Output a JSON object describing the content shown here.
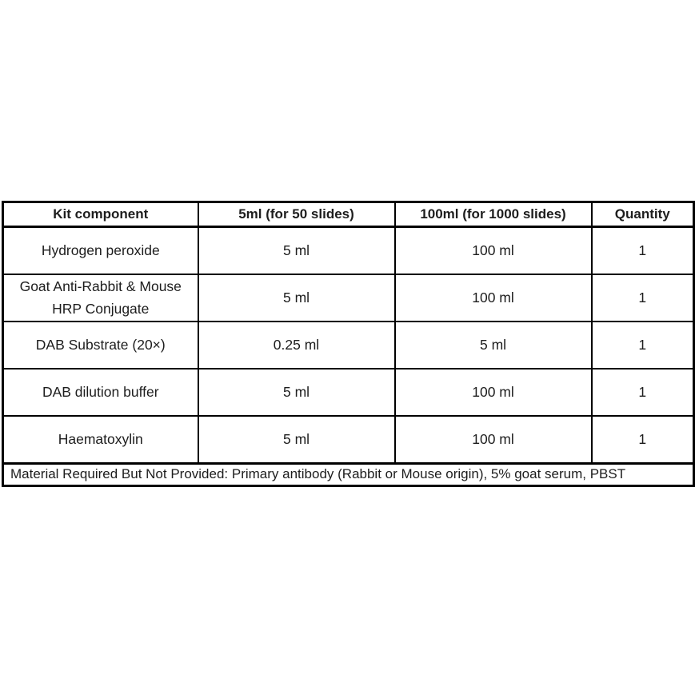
{
  "table": {
    "headers": [
      "Kit component",
      "5ml (for 50 slides)",
      "100ml (for 1000 slides)",
      "Quantity"
    ],
    "rows": [
      [
        "Hydrogen peroxide",
        "5 ml",
        "100 ml",
        "1"
      ],
      [
        "Goat Anti-Rabbit & Mouse HRP Conjugate",
        "5 ml",
        "100 ml",
        "1"
      ],
      [
        "DAB Substrate (20×)",
        "0.25 ml",
        "5 ml",
        "1"
      ],
      [
        "DAB dilution buffer",
        "5 ml",
        "100 ml",
        "1"
      ],
      [
        "Haematoxylin",
        "5 ml",
        "100 ml",
        "1"
      ]
    ],
    "footer_note": "Material Required But Not Provided: Primary antibody (Rabbit or Mouse origin), 5% goat serum, PBST"
  },
  "colors": {
    "border": "#000000",
    "text": "#1d1d1d",
    "background": "#ffffff"
  }
}
